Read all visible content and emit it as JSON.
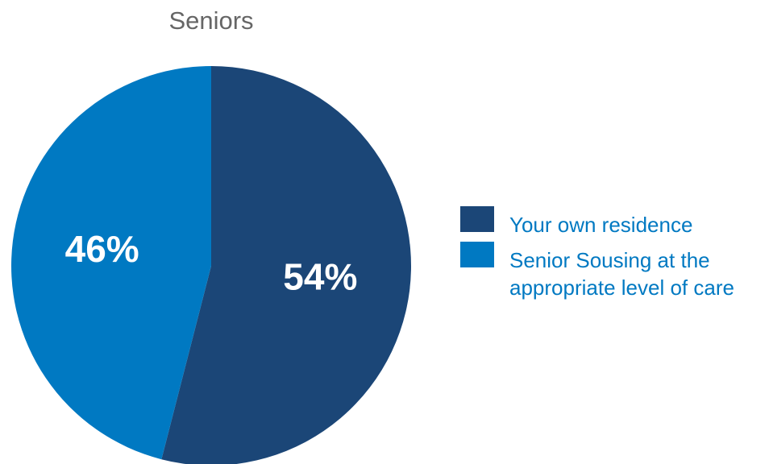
{
  "chart_data": {
    "type": "pie",
    "title": "Seniors",
    "slices": [
      {
        "label": "Your own residence",
        "value": 54,
        "display": "54%",
        "color": "#1b4677"
      },
      {
        "label": "Senior Sousing at the\nappropriate level of care",
        "value": 46,
        "display": "46%",
        "color": "#0079c2"
      }
    ],
    "legend": {
      "position": "right",
      "text_color": "#0079c2",
      "items": [
        {
          "label": "Your own residence",
          "color": "#1b4677"
        },
        {
          "label": "Senior Sousing at the appropriate level of care",
          "color": "#0079c2"
        }
      ]
    }
  }
}
